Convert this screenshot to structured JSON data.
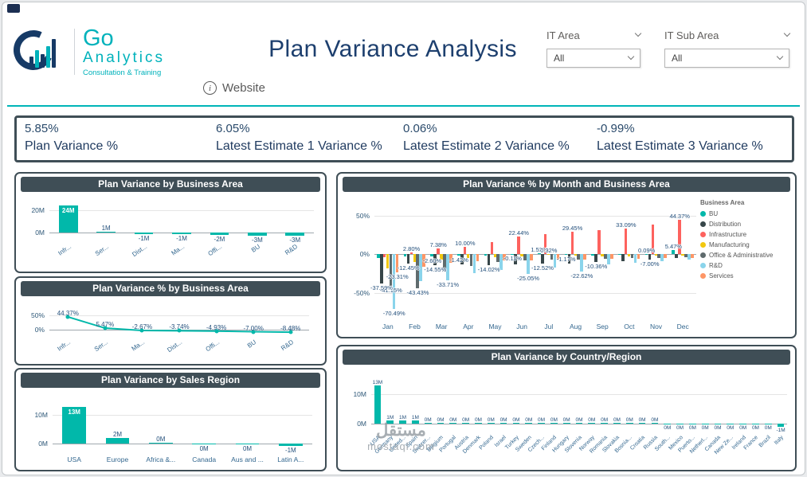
{
  "page": {
    "watermark": {
      "line1": "مستقل",
      "line2": "mostaql.com"
    }
  },
  "colors": {
    "accent_teal": "#01B8AA",
    "panel_header": "#3F4E56",
    "title_navy": "#1D3F6E"
  },
  "header": {
    "title": "Plan Variance Analysis",
    "logo": {
      "text_main": "Go",
      "text_sub": "Analytics",
      "tagline": "Consultation & Training"
    },
    "website": {
      "label": "Website"
    },
    "filters": [
      {
        "label": "IT Area",
        "value": "All"
      },
      {
        "label": "IT Sub Area",
        "value": "All"
      }
    ]
  },
  "kpis": [
    {
      "value": "5.85%",
      "label": "Plan Variance %"
    },
    {
      "value": "6.05%",
      "label": "Latest Estimate 1 Variance %"
    },
    {
      "value": "0.06%",
      "label": "Latest Estimate 2 Variance %"
    },
    {
      "value": "-0.99%",
      "label": "Latest Estimate 3 Variance %"
    }
  ],
  "chart_data": [
    {
      "type": "bar",
      "title": "Plan Variance by Business Area",
      "categories": [
        "Infr...",
        "Ser...",
        "Dist...",
        "Ma...",
        "Offi...",
        "BU",
        "R&D"
      ],
      "values": [
        24,
        1,
        -1,
        -1,
        -2,
        -3,
        -3
      ],
      "labels": [
        "24M",
        "1M",
        "-1M",
        "-1M",
        "-2M",
        "-3M",
        "-3M"
      ],
      "y_ticks": [
        {
          "v": 20,
          "label": "20M"
        },
        {
          "v": 0,
          "label": "0M"
        }
      ],
      "ylim": [
        -7,
        27
      ],
      "bar_color": "#01B8AA"
    },
    {
      "type": "line",
      "title": "Plan Variance % by Business Area",
      "categories": [
        "Infr...",
        "Ser...",
        "Ma...",
        "Dist...",
        "Offi...",
        "BU",
        "R&D"
      ],
      "values": [
        44.37,
        5.47,
        -2.67,
        -3.74,
        -4.93,
        -7.0,
        -8.48
      ],
      "labels": [
        "44.37%",
        "5.47%",
        "-2.67%",
        "-3.74%",
        "-4.93%",
        "-7.00%",
        "-8.48%"
      ],
      "y_ticks": [
        {
          "v": 50,
          "label": "50%"
        },
        {
          "v": 0,
          "label": "0%"
        }
      ],
      "ylim": [
        -22,
        58
      ],
      "line_color": "#01B8AA"
    },
    {
      "type": "grouped_bar",
      "title": "Plan Variance % by Month and Business Area",
      "categories": [
        "Jan",
        "Feb",
        "Mar",
        "Apr",
        "May",
        "Jun",
        "Jul",
        "Aug",
        "Sep",
        "Oct",
        "Nov",
        "Dec"
      ],
      "legend_title": "Business Area",
      "legend_position": "right",
      "series": [
        {
          "name": "BU",
          "color": "#01B8AA",
          "values": [
            -5,
            -3,
            -2.6,
            -1.42,
            -2,
            -0.11,
            1.52,
            -1.17,
            -2,
            -1,
            0.09,
            5.47
          ]
        },
        {
          "name": "Distribution",
          "color": "#374649",
          "values": [
            -37.59,
            -12.45,
            -14.55,
            -13,
            -14.02,
            -13,
            -12.52,
            -12,
            -10.36,
            -9,
            -7,
            -5
          ]
        },
        {
          "name": "Infrastructure",
          "color": "#FD625E",
          "values": [
            -4,
            2.8,
            7.38,
            10,
            16,
            22.44,
            26,
            29.45,
            31,
            33.09,
            38,
            44.37
          ]
        },
        {
          "name": "Manufacturing",
          "color": "#F2C80F",
          "values": [
            -18,
            -10,
            -7,
            -5,
            -4,
            -3,
            0.32,
            -2,
            -3,
            -2.5,
            -2,
            -1.5
          ]
        },
        {
          "name": "Office & Administrative",
          "color": "#5F6B6D",
          "values": [
            -41.15,
            -43.43,
            -22,
            -15,
            -10,
            -8,
            -7,
            -6.5,
            -6,
            -5,
            -4.5,
            -4
          ]
        },
        {
          "name": "R&D",
          "color": "#8AD4EB",
          "values": [
            -70.49,
            -35,
            -33.71,
            -24,
            -20,
            -25.05,
            -17,
            -22.62,
            -13,
            -11,
            -9,
            -7
          ]
        },
        {
          "name": "Services",
          "color": "#FE9666",
          "values": [
            -23.31,
            -16,
            -11,
            -9,
            -7.5,
            -8,
            -6.5,
            -7,
            -6,
            -5.5,
            -5,
            -4.5
          ]
        }
      ],
      "visible_labels": [
        {
          "month": 0,
          "series": 4,
          "text": "-41.15%"
        },
        {
          "month": 0,
          "series": 1,
          "text": "-37.59%"
        },
        {
          "month": 0,
          "series": 5,
          "text": "-70.49%"
        },
        {
          "month": 0,
          "series": 6,
          "text": "-23.31%"
        },
        {
          "month": 1,
          "series": 2,
          "text": "2.80%"
        },
        {
          "month": 1,
          "series": 1,
          "text": "-12.45%"
        },
        {
          "month": 1,
          "series": 4,
          "text": "-43.43%"
        },
        {
          "month": 2,
          "series": 2,
          "text": "7.38%"
        },
        {
          "month": 2,
          "series": 0,
          "text": "-2.60%"
        },
        {
          "month": 2,
          "series": 1,
          "text": "-14.55%"
        },
        {
          "month": 2,
          "series": 5,
          "text": "-33.71%"
        },
        {
          "month": 3,
          "series": 2,
          "text": "10.00%"
        },
        {
          "month": 3,
          "series": 0,
          "text": "-1.42%"
        },
        {
          "month": 4,
          "series": 1,
          "text": "-14.02%"
        },
        {
          "month": 5,
          "series": 2,
          "text": "22.44%"
        },
        {
          "month": 5,
          "series": 0,
          "text": "-0.11%"
        },
        {
          "month": 5,
          "series": 5,
          "text": "-25.05%"
        },
        {
          "month": 6,
          "series": 0,
          "text": "1.52%"
        },
        {
          "month": 6,
          "series": 3,
          "text": "0.32%"
        },
        {
          "month": 6,
          "series": 1,
          "text": "-12.52%"
        },
        {
          "month": 7,
          "series": 2,
          "text": "29.45%"
        },
        {
          "month": 7,
          "series": 0,
          "text": "-1.17%"
        },
        {
          "month": 7,
          "series": 5,
          "text": "-22.62%"
        },
        {
          "month": 8,
          "series": 1,
          "text": "-10.36%"
        },
        {
          "month": 9,
          "series": 2,
          "text": "33.09%"
        },
        {
          "month": 10,
          "series": 0,
          "text": "0.09%"
        },
        {
          "month": 10,
          "series": 1,
          "text": "-7.00%"
        },
        {
          "month": 11,
          "series": 2,
          "text": "44.37%"
        },
        {
          "month": 11,
          "series": 0,
          "text": "5.47%"
        }
      ],
      "y_ticks": [
        {
          "v": 50,
          "label": "50%"
        },
        {
          "v": 0,
          "label": "0%"
        },
        {
          "v": -50,
          "label": "-50%"
        }
      ],
      "ylim": [
        -85,
        65
      ]
    },
    {
      "type": "bar",
      "title": "Plan Variance by Sales Region",
      "categories": [
        "USA",
        "Europe",
        "Africa &...",
        "Canada",
        "Aus and ...",
        "Latin A..."
      ],
      "values": [
        13,
        2,
        0.2,
        -0.1,
        -0.1,
        -1
      ],
      "labels": [
        "13M",
        "2M",
        "0M",
        "0M",
        "0M",
        "-1M"
      ],
      "y_ticks": [
        {
          "v": 10,
          "label": "10M"
        },
        {
          "v": 0,
          "label": "0M"
        }
      ],
      "ylim": [
        -3.5,
        15.5
      ],
      "bar_color": "#01B8AA"
    },
    {
      "type": "bar",
      "title": "Plan Variance by Country/Region",
      "categories": [
        "USA",
        "Germany",
        "United...",
        "Spain",
        "Switzer...",
        "Belgium",
        "Portugal",
        "Austria",
        "Denmark",
        "Poland",
        "Israel",
        "Turkey",
        "Sweden",
        "Czech...",
        "Finland",
        "Hungary",
        "Slovenia",
        "Norway",
        "Romania",
        "Slovakia",
        "Bosnia...",
        "Croatia",
        "Russia",
        "South...",
        "Mexico",
        "Puerto...",
        "Netherl...",
        "Canada",
        "New Ze...",
        "Ireland",
        "France",
        "Brazil",
        "Italy"
      ],
      "values": [
        13,
        1,
        1,
        1,
        0.15,
        0.15,
        0.15,
        0.15,
        0.15,
        0.15,
        0.15,
        0.15,
        0.15,
        0.15,
        0.15,
        0.15,
        0.15,
        0.15,
        0.15,
        0.15,
        0.15,
        0.15,
        0.15,
        -0.12,
        -0.12,
        -0.12,
        -0.12,
        -0.12,
        -0.12,
        -0.12,
        -0.12,
        -0.12,
        -1
      ],
      "labels": [
        "13M",
        "1M",
        "1M",
        "1M",
        "0M",
        "0M",
        "0M",
        "0M",
        "0M",
        "0M",
        "0M",
        "0M",
        "0M",
        "0M",
        "0M",
        "0M",
        "0M",
        "0M",
        "0M",
        "0M",
        "0M",
        "0M",
        "0M",
        "0M",
        "0M",
        "0M",
        "0M",
        "0M",
        "0M",
        "0M",
        "0M",
        "0M",
        "-1M"
      ],
      "y_ticks": [
        {
          "v": 10,
          "label": "10M"
        },
        {
          "v": 0,
          "label": "0M"
        }
      ],
      "ylim": [
        -3,
        14.5
      ],
      "bar_color": "#01B8AA"
    }
  ]
}
